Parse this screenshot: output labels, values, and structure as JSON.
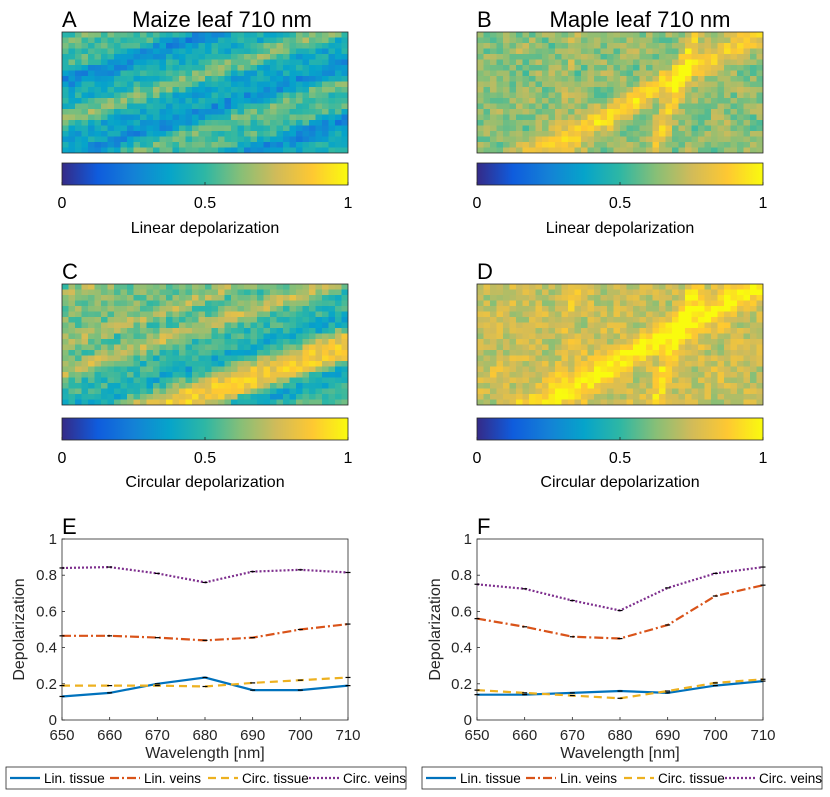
{
  "colors": {
    "lin_tissue": "#0072BD",
    "lin_veins": "#D95319",
    "circ_tissue": "#EDB120",
    "circ_veins": "#7E2F8E",
    "colormap": [
      "#352A87",
      "#0F5CDD",
      "#1481D6",
      "#06A4CA",
      "#2EB7A4",
      "#87BF77",
      "#D1BB59",
      "#FEC832",
      "#F9FB0E"
    ]
  },
  "panels": [
    {
      "letter": "A",
      "title": "Maize leaf 710 nm",
      "colorbar_label": "Linear depolarization",
      "ticks": [
        "0",
        "0.5",
        "1"
      ],
      "pattern": "maize",
      "mean_level": 0.45
    },
    {
      "letter": "B",
      "title": "Maple leaf 710 nm",
      "colorbar_label": "Linear depolarization",
      "ticks": [
        "0",
        "0.5",
        "1"
      ],
      "pattern": "maple",
      "mean_level": 0.68
    },
    {
      "letter": "C",
      "title": "",
      "colorbar_label": "Circular depolarization",
      "ticks": [
        "0",
        "0.5",
        "1"
      ],
      "pattern": "maize",
      "mean_level": 0.55
    },
    {
      "letter": "D",
      "title": "",
      "colorbar_label": "Circular depolarization",
      "ticks": [
        "0",
        "0.5",
        "1"
      ],
      "pattern": "maple",
      "mean_level": 0.78
    }
  ],
  "chart_data": [
    {
      "type": "line",
      "letter": "E",
      "xlabel": "Wavelength [nm]",
      "ylabel": "Depolarization",
      "xlim": [
        650,
        710
      ],
      "ylim": [
        0,
        1
      ],
      "x": [
        650,
        660,
        670,
        680,
        690,
        700,
        710
      ],
      "xticks": [
        "650",
        "660",
        "670",
        "680",
        "690",
        "700",
        "710"
      ],
      "yticks": [
        "0",
        "0.2",
        "0.4",
        "0.6",
        "0.8",
        "1"
      ],
      "series": [
        {
          "name": "Lin. tissue",
          "key": "lin_tissue",
          "dash": "",
          "values": [
            0.13,
            0.15,
            0.2,
            0.235,
            0.165,
            0.165,
            0.19
          ]
        },
        {
          "name": "Lin. veins",
          "key": "lin_veins",
          "dash": "9,3,2,3",
          "values": [
            0.465,
            0.465,
            0.455,
            0.44,
            0.455,
            0.5,
            0.53
          ]
        },
        {
          "name": "Circ. tissue",
          "key": "circ_tissue",
          "dash": "8,5",
          "values": [
            0.19,
            0.19,
            0.19,
            0.185,
            0.205,
            0.22,
            0.235
          ]
        },
        {
          "name": "Circ. veins",
          "key": "circ_veins",
          "dash": "2,2",
          "values": [
            0.84,
            0.845,
            0.81,
            0.76,
            0.82,
            0.83,
            0.815
          ]
        }
      ]
    },
    {
      "type": "line",
      "letter": "F",
      "xlabel": "Wavelength [nm]",
      "ylabel": "Depolarization",
      "xlim": [
        650,
        710
      ],
      "ylim": [
        0,
        1
      ],
      "x": [
        650,
        660,
        670,
        680,
        690,
        700,
        710
      ],
      "xticks": [
        "650",
        "660",
        "670",
        "680",
        "690",
        "700",
        "710"
      ],
      "yticks": [
        "0",
        "0.2",
        "0.4",
        "0.6",
        "0.8",
        "1"
      ],
      "series": [
        {
          "name": "Lin. tissue",
          "key": "lin_tissue",
          "dash": "",
          "values": [
            0.14,
            0.14,
            0.15,
            0.16,
            0.15,
            0.19,
            0.215
          ]
        },
        {
          "name": "Lin. veins",
          "key": "lin_veins",
          "dash": "9,3,2,3",
          "values": [
            0.56,
            0.515,
            0.46,
            0.45,
            0.525,
            0.685,
            0.745
          ]
        },
        {
          "name": "Circ. tissue",
          "key": "circ_tissue",
          "dash": "8,5",
          "values": [
            0.165,
            0.15,
            0.135,
            0.12,
            0.16,
            0.205,
            0.225
          ]
        },
        {
          "name": "Circ. veins",
          "key": "circ_veins",
          "dash": "2,2",
          "values": [
            0.75,
            0.725,
            0.66,
            0.605,
            0.73,
            0.81,
            0.845
          ]
        }
      ]
    }
  ]
}
